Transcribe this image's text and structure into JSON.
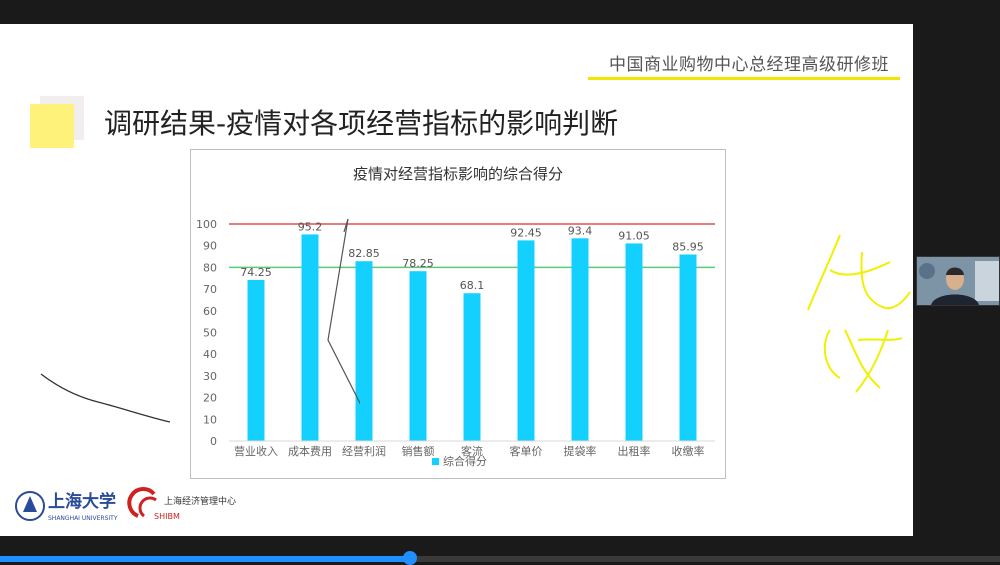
{
  "slide": {
    "course_title": "中国商业购物中心总经理高级研修班",
    "heading": "调研结果-疫情对各项经营指标的影响判断"
  },
  "logos": {
    "university_name": "上海大学",
    "university_en": "SHANGHAI UNIVERSITY",
    "center_name": "上海经济管理中心",
    "center_abbr": "SHIBM"
  },
  "colors": {
    "accent_yellow": "#f2e600",
    "bar": "#14d0ff",
    "line_100": "#e05050",
    "line_80": "#5cc87a",
    "progress": "#1e90ff"
  },
  "playback": {
    "progress": 0.41
  },
  "chart_data": {
    "type": "bar",
    "title": "疫情对经营指标影响的综合得分",
    "categories": [
      "营业收入",
      "成本费用",
      "经营利润",
      "销售额",
      "客流",
      "客单价",
      "提袋率",
      "出租率",
      "收缴率"
    ],
    "series": [
      {
        "name": "综合得分",
        "values": [
          74.25,
          95.2,
          82.85,
          78.25,
          68.1,
          92.45,
          93.4,
          91.05,
          85.95
        ]
      }
    ],
    "data_labels": [
      "74.25",
      "95.2",
      "82.85",
      "78.25",
      "68.1",
      "92.45",
      "93.4",
      "91.05",
      "85.95"
    ],
    "y_ticks": [
      "0",
      "10",
      "20",
      "30",
      "40",
      "50",
      "60",
      "70",
      "80",
      "90",
      "100"
    ],
    "ylim": [
      0,
      100
    ],
    "reference_lines": [
      100,
      80
    ],
    "legend": "bottom",
    "grid": false
  }
}
